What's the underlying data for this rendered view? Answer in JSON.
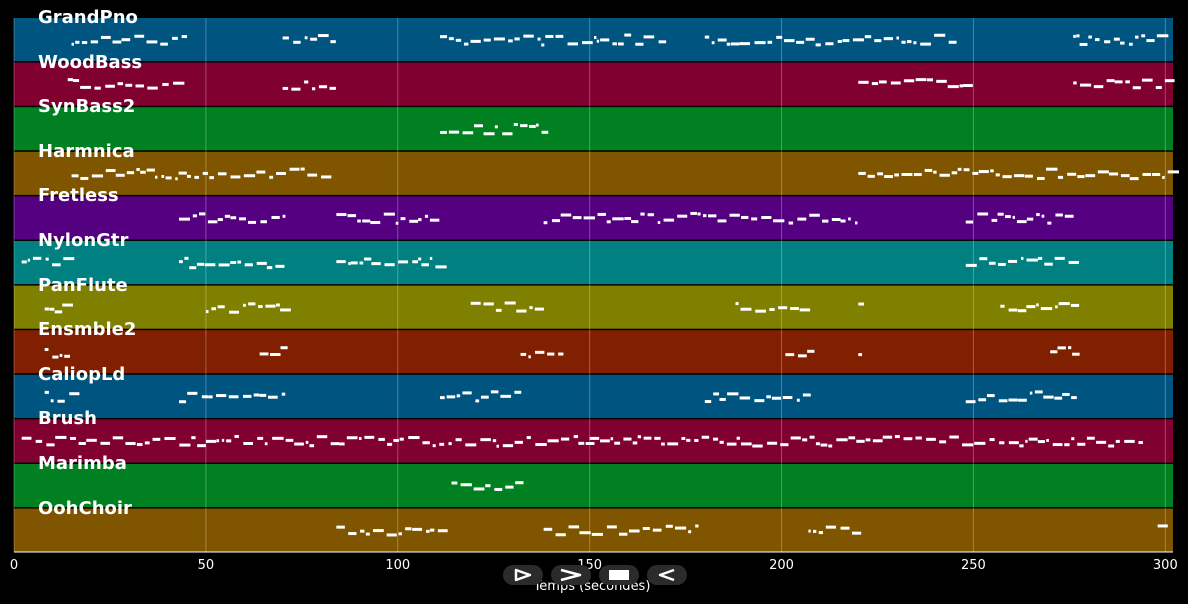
{
  "tracks": [
    {
      "name": "GrandPno",
      "color": "#005580"
    },
    {
      "name": "WoodBass",
      "color": "#800030"
    },
    {
      "name": "SynBass2",
      "color": "#008020"
    },
    {
      "name": "Harmnica",
      "color": "#805500"
    },
    {
      "name": "Fretless",
      "color": "#550080"
    },
    {
      "name": "NylonGtr",
      "color": "#008080"
    },
    {
      "name": "PanFlute",
      "color": "#808000"
    },
    {
      "name": "Ensmble2",
      "color": "#802000"
    },
    {
      "name": "CaliopLd",
      "color": "#005580"
    },
    {
      "name": "Brush",
      "color": "#800030"
    },
    {
      "name": "Marimba",
      "color": "#008020"
    },
    {
      "name": "OohChoir",
      "color": "#805500"
    }
  ],
  "x_axis": {
    "label": "Temps (secondes)",
    "ticks": [
      "0",
      "50",
      "100",
      "150",
      "200",
      "250",
      "300"
    ],
    "tick_values": [
      0,
      50,
      100,
      150,
      200,
      250,
      300
    ],
    "range": [
      0,
      302
    ]
  },
  "controls": [
    {
      "name": "play-button",
      "icon": "play-icon"
    },
    {
      "name": "fast-forward-button",
      "icon": "fast-forward-icon"
    },
    {
      "name": "stop-button",
      "icon": "stop-icon"
    },
    {
      "name": "rewind-button",
      "icon": "rewind-icon"
    }
  ],
  "note_regions": [
    [
      [
        15,
        45
      ],
      [
        70,
        84
      ],
      [
        111,
        170
      ],
      [
        180,
        245
      ],
      [
        276,
        301
      ]
    ],
    [
      [
        14,
        43
      ],
      [
        70,
        84
      ],
      [
        220,
        248
      ],
      [
        276,
        301
      ]
    ],
    [
      [
        111,
        138
      ]
    ],
    [
      [
        15,
        82
      ],
      [
        220,
        301
      ]
    ],
    [
      [
        43,
        70
      ],
      [
        84,
        111
      ],
      [
        138,
        220
      ],
      [
        248,
        276
      ]
    ],
    [
      [
        2,
        15
      ],
      [
        43,
        70
      ],
      [
        84,
        111
      ],
      [
        248,
        276
      ]
    ],
    [
      [
        8,
        14
      ],
      [
        50,
        70
      ],
      [
        119,
        138
      ],
      [
        188,
        206
      ],
      [
        220,
        221
      ],
      [
        257,
        276
      ]
    ],
    [
      [
        8,
        14
      ],
      [
        64,
        70
      ],
      [
        132,
        142
      ],
      [
        201,
        207
      ],
      [
        220,
        221
      ],
      [
        270,
        276
      ]
    ],
    [
      [
        8,
        15
      ],
      [
        43,
        70
      ],
      [
        111,
        131
      ],
      [
        180,
        207
      ],
      [
        248,
        276
      ]
    ],
    [
      [
        2,
        150
      ],
      [
        150,
        295
      ]
    ],
    [
      [
        114,
        131
      ]
    ],
    [
      [
        84,
        111
      ],
      [
        138,
        179
      ],
      [
        207,
        221
      ],
      [
        298,
        301
      ]
    ]
  ]
}
